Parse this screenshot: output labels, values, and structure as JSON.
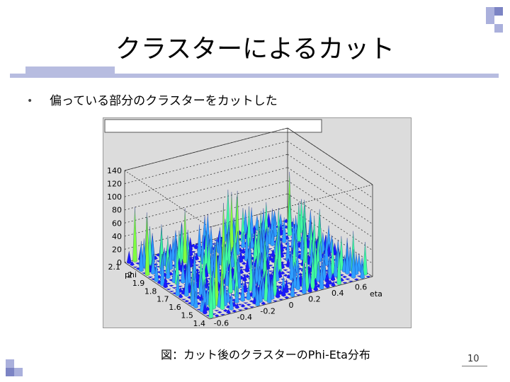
{
  "slide": {
    "title": "クラスターによるカット",
    "bullet": "偏っている部分のクラスターをカットした",
    "caption": "図：カット後のクラスターのPhi-Eta分布",
    "page_number": "10"
  },
  "chart_data": {
    "type": "3d-surface",
    "title": "",
    "z_ticks": [
      "0",
      "20",
      "40",
      "60",
      "80",
      "100",
      "120",
      "140"
    ],
    "phi_ticks": [
      "2.1",
      "2",
      "1.9",
      "1.8",
      "1.7",
      "1.6",
      "1.5",
      "1.4"
    ],
    "eta_ticks": [
      "-0.6",
      "-0.4",
      "-0.2",
      "0",
      "0.2",
      "0.4",
      "0.6"
    ],
    "phi_axis_label": "phi",
    "eta_axis_label": "eta",
    "zlim": [
      0,
      140
    ],
    "phi_range": [
      1.4,
      2.1
    ],
    "eta_range": [
      -0.7,
      0.7
    ],
    "colors": {
      "low": "#1a1aff",
      "mid": "#2f9fff",
      "high": "#40ffa0",
      "peak": "#80ff40"
    }
  }
}
